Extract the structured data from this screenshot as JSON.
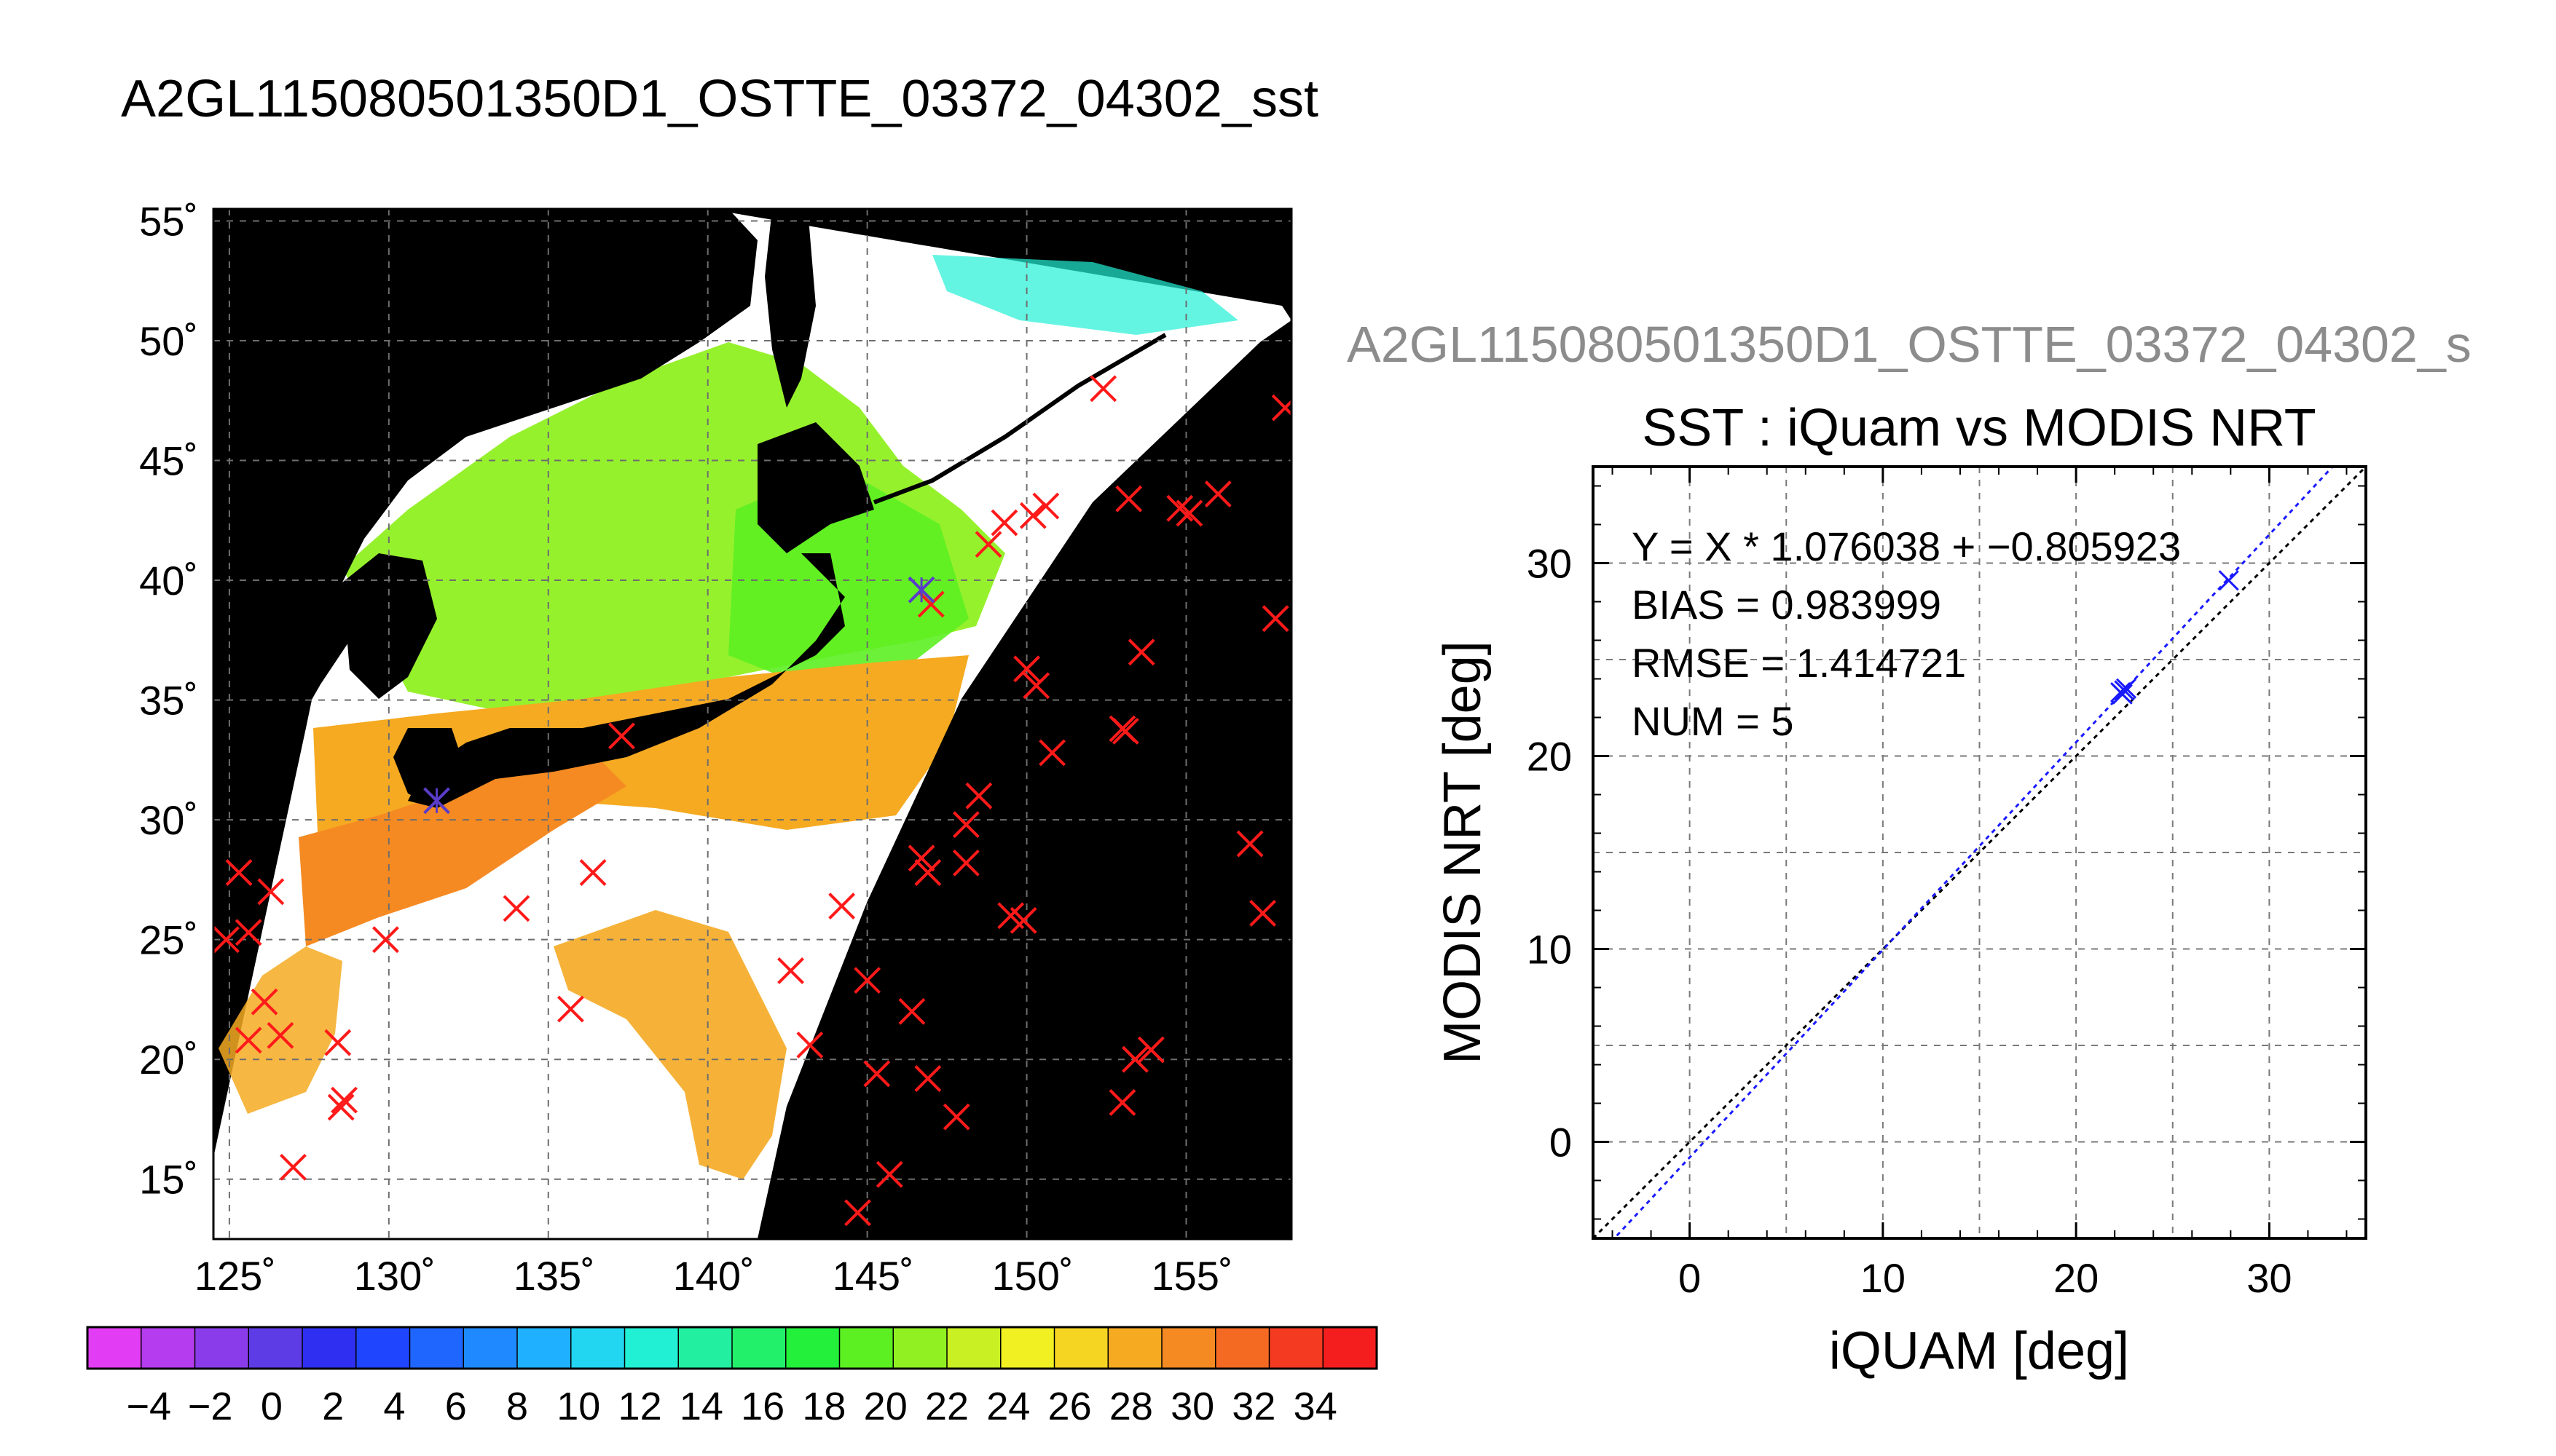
{
  "page_title": "A2GL115080501350D1_OSTTE_03372_04302_sst",
  "map": {
    "lon_ticks": [
      "125˚",
      "130˚",
      "135˚",
      "140˚",
      "145˚",
      "150˚",
      "155˚"
    ],
    "lat_ticks": [
      "55˚",
      "50˚",
      "45˚",
      "40˚",
      "35˚",
      "30˚",
      "25˚",
      "20˚",
      "15˚"
    ],
    "lon_range": [
      124.5,
      158.3
    ],
    "lat_range": [
      12.5,
      55.5
    ],
    "land_color": "#000000",
    "cloud_color": "#ffffff",
    "crosses_color": "#ff1a1a",
    "crosses": [
      [
        125.3,
        27.8
      ],
      [
        124.9,
        25.0
      ],
      [
        125.6,
        25.3
      ],
      [
        126.1,
        22.4
      ],
      [
        125.6,
        20.8
      ],
      [
        126.3,
        27.0
      ],
      [
        126.6,
        21.0
      ],
      [
        127.0,
        15.5
      ],
      [
        128.4,
        20.7
      ],
      [
        128.6,
        18.3
      ],
      [
        128.5,
        18.0
      ],
      [
        129.9,
        25.0
      ],
      [
        134.0,
        26.3
      ],
      [
        135.7,
        22.1
      ],
      [
        136.4,
        27.8
      ],
      [
        137.3,
        33.5
      ],
      [
        142.6,
        23.7
      ],
      [
        143.2,
        20.6
      ],
      [
        144.2,
        26.4
      ],
      [
        145.0,
        23.3
      ],
      [
        145.3,
        19.4
      ],
      [
        145.7,
        15.2
      ],
      [
        144.7,
        13.6
      ],
      [
        146.4,
        22.0
      ],
      [
        146.7,
        28.4
      ],
      [
        146.9,
        27.8
      ],
      [
        146.9,
        19.2
      ],
      [
        147.8,
        17.6
      ],
      [
        148.1,
        28.2
      ],
      [
        148.1,
        29.8
      ],
      [
        148.5,
        31.0
      ],
      [
        149.5,
        26.0
      ],
      [
        149.9,
        25.8
      ],
      [
        150.0,
        36.3
      ],
      [
        150.3,
        35.6
      ],
      [
        150.8,
        32.8
      ],
      [
        147.0,
        39.0
      ],
      [
        148.8,
        41.5
      ],
      [
        149.3,
        42.4
      ],
      [
        150.2,
        42.7
      ],
      [
        150.6,
        43.1
      ],
      [
        152.4,
        48.0
      ],
      [
        153.0,
        33.8
      ],
      [
        153.1,
        33.7
      ],
      [
        153.0,
        18.2
      ],
      [
        153.4,
        20.0
      ],
      [
        153.9,
        20.4
      ],
      [
        153.2,
        43.4
      ],
      [
        153.6,
        37.0
      ],
      [
        154.8,
        43.0
      ],
      [
        155.1,
        42.8
      ],
      [
        156.0,
        43.6
      ],
      [
        157.0,
        29.0
      ],
      [
        157.4,
        26.1
      ],
      [
        157.8,
        38.4
      ],
      [
        158.1,
        47.2
      ]
    ],
    "blue_crosses": [
      [
        131.5,
        30.8
      ],
      [
        146.7,
        39.6
      ]
    ]
  },
  "colorbar": {
    "tick_labels": [
      "−4",
      "−2",
      "0",
      "2",
      "4",
      "6",
      "8",
      "10",
      "12",
      "14",
      "16",
      "18",
      "20",
      "22",
      "24",
      "26",
      "28",
      "30",
      "32",
      "34"
    ],
    "colors": [
      "#e23cf5",
      "#b63cf0",
      "#8a3cea",
      "#5d3ce6",
      "#2e2ff0",
      "#1f45ff",
      "#1f66ff",
      "#1f8aff",
      "#1fb0ff",
      "#22d5f0",
      "#22f0d5",
      "#22f0a0",
      "#22f06a",
      "#22f03a",
      "#5cf022",
      "#90f022",
      "#c8f022",
      "#f0f022",
      "#f5d522",
      "#f5aa22",
      "#f58a22",
      "#f56a22",
      "#f53a22",
      "#f51e1e"
    ]
  },
  "scatter_title_gray": "A2GL115080501350D1_OSTTE_03372_04302_s",
  "chart_data": {
    "type": "scatter",
    "title": "SST : iQuam vs MODIS NRT",
    "xlabel": "iQUAM [deg]",
    "ylabel": "MODIS NRT [deg]",
    "xlim": [
      -5,
      35
    ],
    "ylim": [
      -5,
      35
    ],
    "xticks": [
      "0",
      "10",
      "20",
      "30"
    ],
    "yticks": [
      "0",
      "10",
      "20",
      "30"
    ],
    "grid": true,
    "points": [
      [
        22.3,
        23.3
      ],
      [
        22.5,
        23.4
      ],
      [
        22.4,
        23.2
      ],
      [
        22.6,
        23.5
      ],
      [
        27.9,
        29.1
      ]
    ],
    "regression": {
      "slope": 1.076038,
      "intercept": -0.805923
    },
    "annotations": {
      "equation": "Y = X * 1.076038 + −0.805923",
      "bias": "BIAS = 0.983999",
      "rmse": "RMSE = 1.414721",
      "num": "NUM = 5"
    },
    "point_color": "#1a1aff",
    "fit_color": "#1a1aff",
    "identity_color": "#000000"
  }
}
